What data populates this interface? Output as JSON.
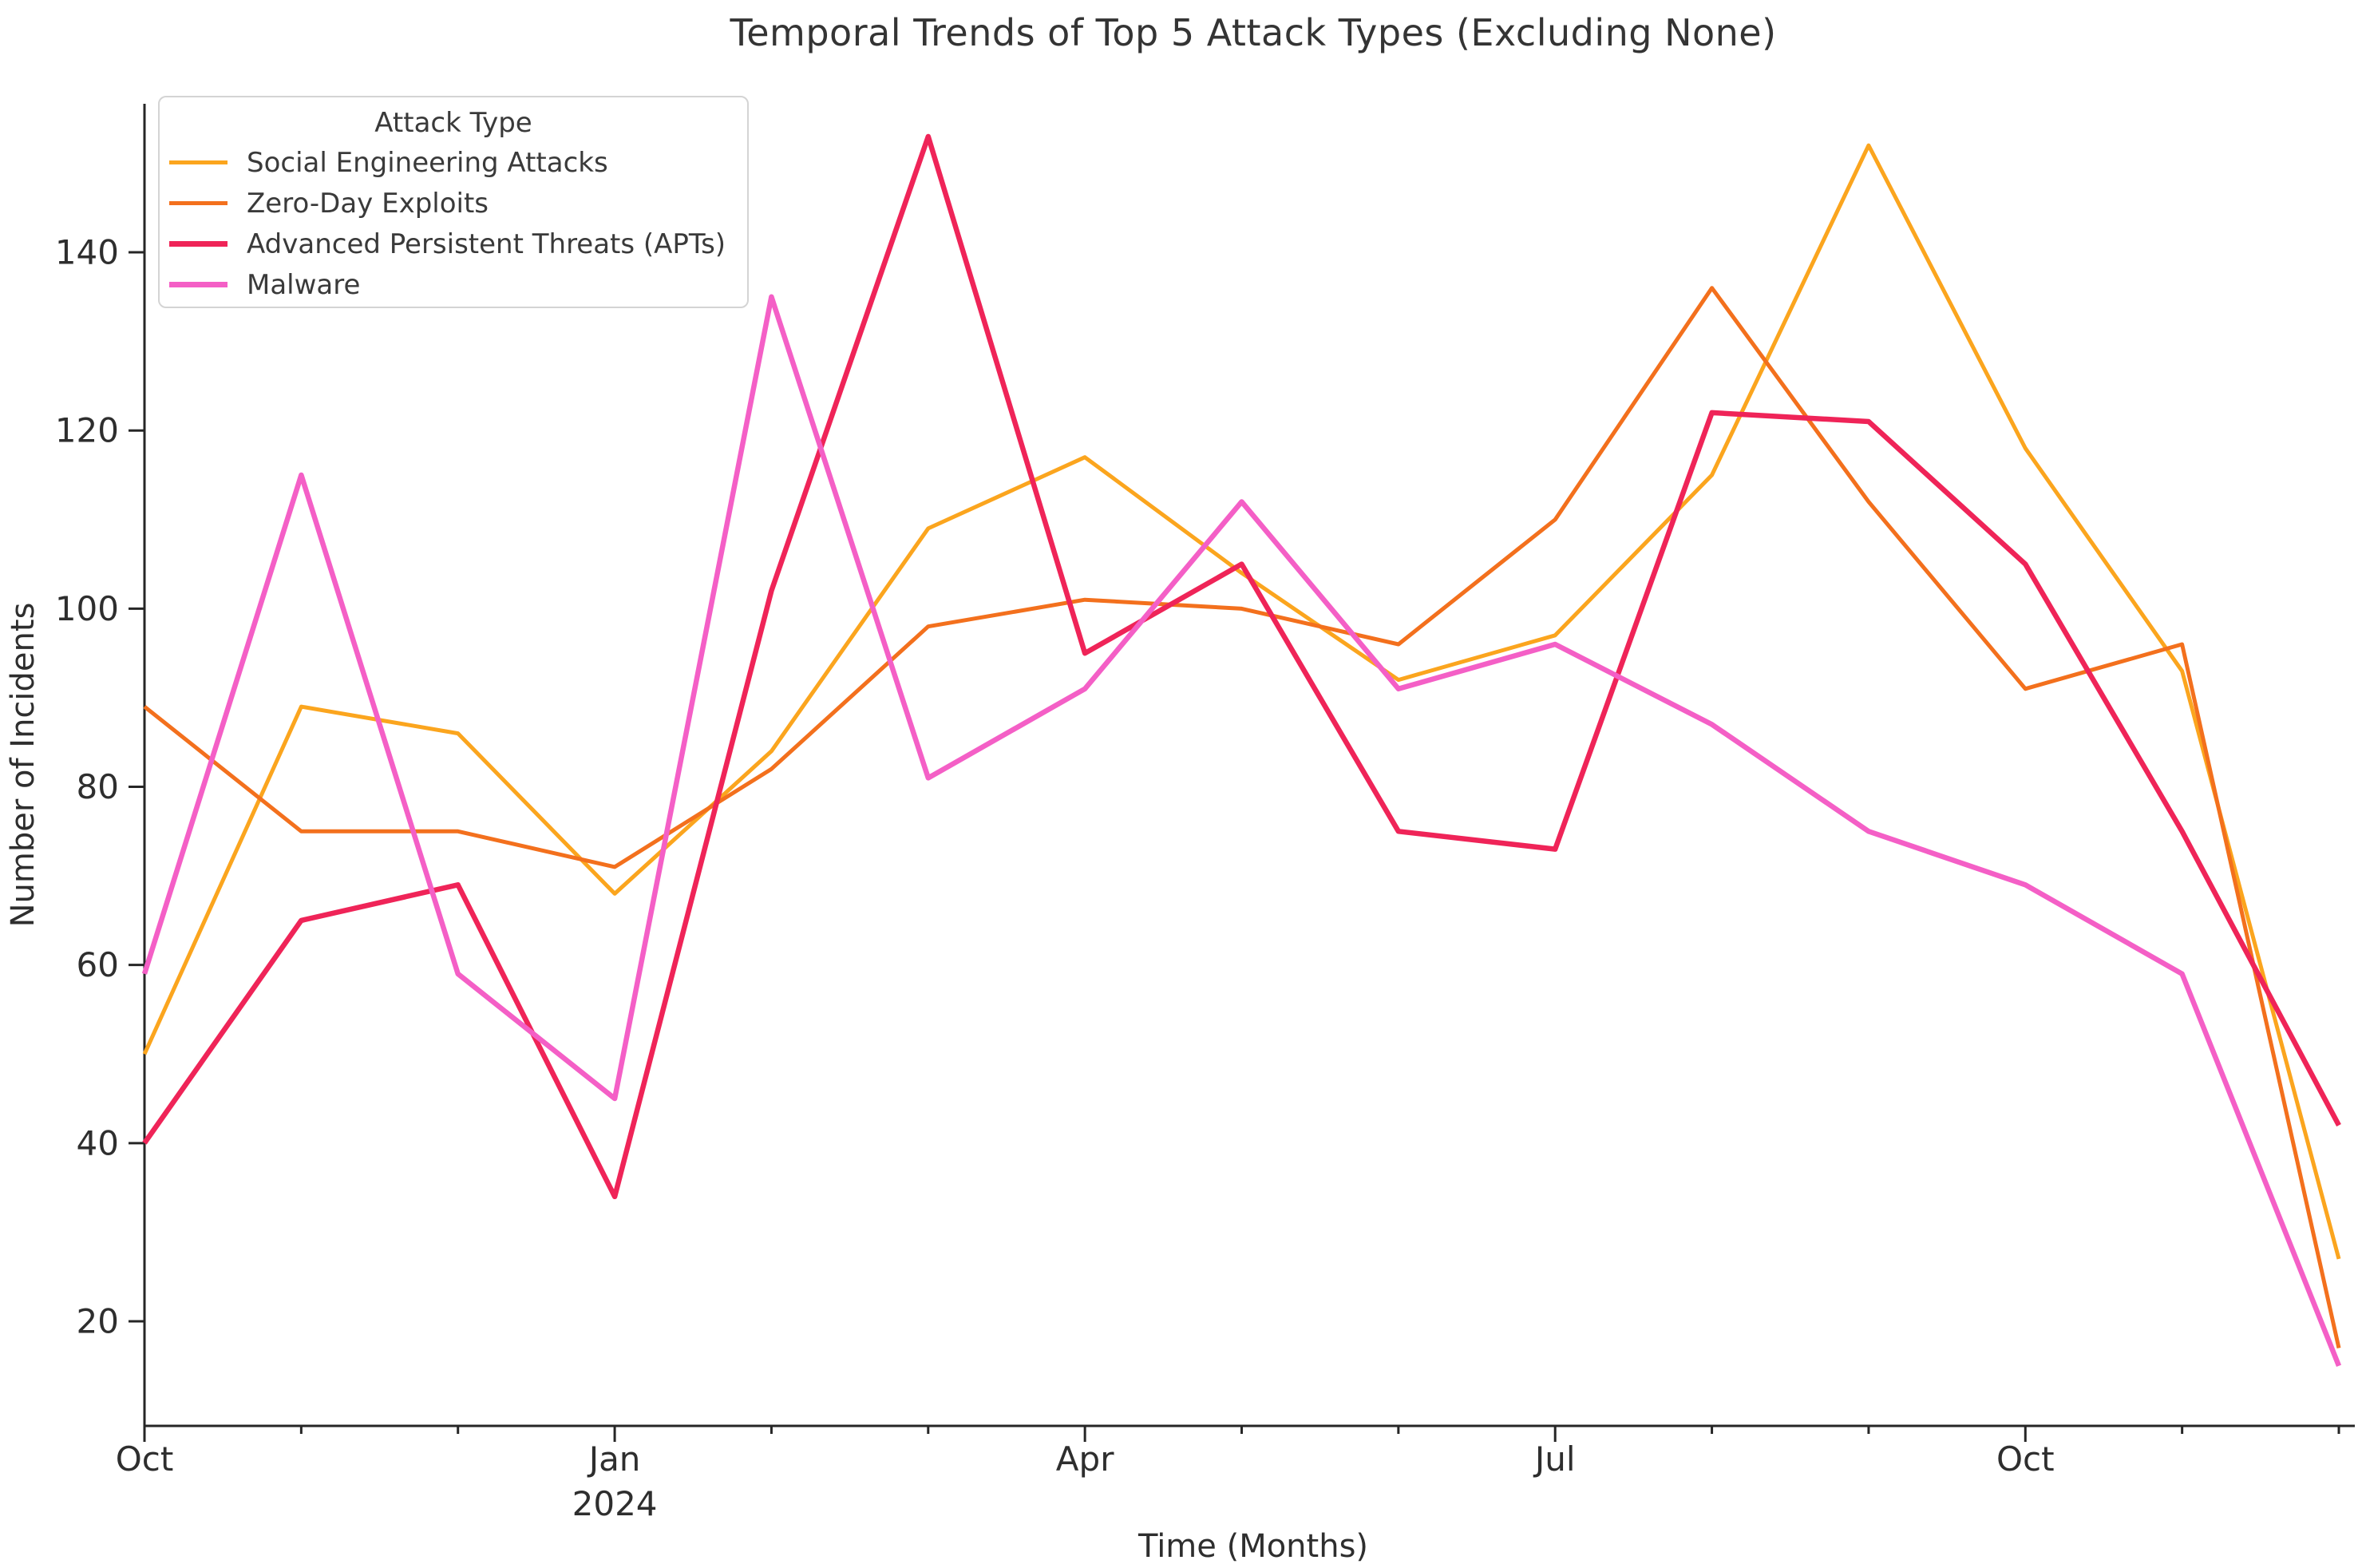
{
  "chart_data": {
    "type": "line",
    "title": "Temporal Trends of Top 5 Attack Types (Excluding None)",
    "xlabel": "Time (Months)",
    "ylabel": "Number of Incidents",
    "x": [
      "Oct 2023",
      "Nov 2023",
      "Dec 2023",
      "Jan 2024",
      "Feb 2024",
      "Mar 2024",
      "Apr 2024",
      "May 2024",
      "Jun 2024",
      "Jul 2024",
      "Aug 2024",
      "Sep 2024",
      "Oct 2024",
      "Nov 2024",
      "Dec 2024"
    ],
    "x_major_ticks": [
      {
        "index": 0,
        "label": "Oct"
      },
      {
        "index": 3,
        "label": "Jan"
      },
      {
        "index": 6,
        "label": "Apr"
      },
      {
        "index": 9,
        "label": "Jul"
      },
      {
        "index": 12,
        "label": "Oct"
      }
    ],
    "x_year_label": {
      "index": 3,
      "text": "2024"
    },
    "yticks": [
      20,
      40,
      60,
      80,
      100,
      120,
      140
    ],
    "ylim": [
      8,
      157
    ],
    "grid": false,
    "legend": {
      "title": "Attack Type",
      "position": "upper left"
    },
    "series": [
      {
        "name": "Social Engineering Attacks",
        "color": "#FBA51E",
        "linewidth": 5,
        "values": [
          50,
          89,
          86,
          68,
          84,
          109,
          117,
          104,
          92,
          97,
          115,
          152,
          118,
          93,
          27
        ]
      },
      {
        "name": "Zero-Day Exploits",
        "color": "#F3701D",
        "linewidth": 5,
        "values": [
          89,
          75,
          75,
          71,
          82,
          98,
          101,
          100,
          96,
          110,
          136,
          112,
          91,
          96,
          17
        ]
      },
      {
        "name": "Advanced Persistent Threats (APTs)",
        "color": "#EF2458",
        "linewidth": 6.5,
        "values": [
          40,
          65,
          69,
          34,
          102,
          153,
          95,
          105,
          75,
          73,
          122,
          121,
          105,
          75,
          42
        ]
      },
      {
        "name": "Malware",
        "color": "#F45FC6",
        "linewidth": 6.5,
        "values": [
          59,
          115,
          59,
          45,
          135,
          81,
          91,
          112,
          91,
          96,
          87,
          75,
          69,
          59,
          15
        ]
      }
    ]
  },
  "colors": {
    "spine": "#262626",
    "tick_label": "#2e2e2e",
    "title_text": "#343434",
    "legend_border": "#d4d4d4"
  }
}
